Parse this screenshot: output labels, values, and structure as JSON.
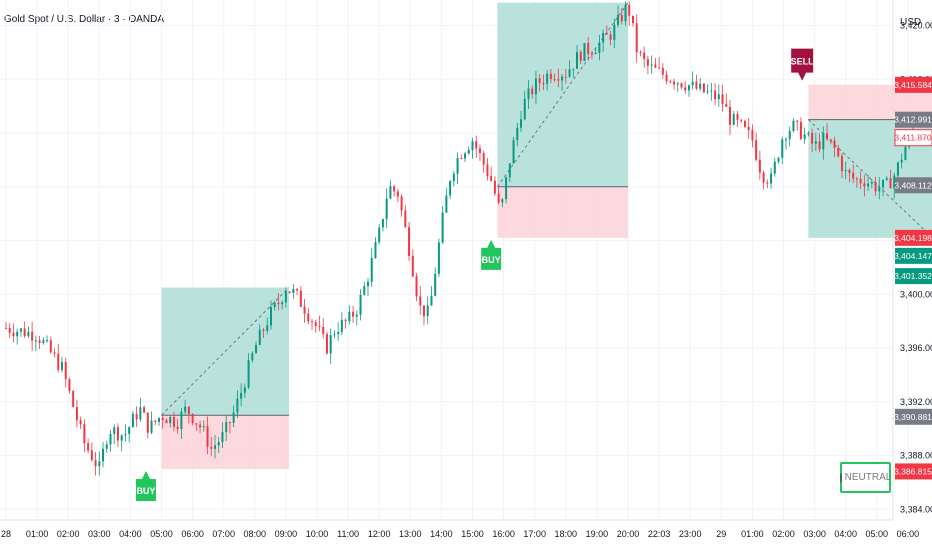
{
  "header": {
    "title": "Gold Spot / U.S. Dollar · 3 · OANDA",
    "currency": "USD"
  },
  "status_badge": {
    "label": "NEUTRAL",
    "border_color": "#22c55e"
  },
  "colors": {
    "up": "#089981",
    "down": "#f23645",
    "target_zone": "#b2dfd8",
    "stop_zone": "#fbd5d9",
    "buy_marker": "#22c55e",
    "sell_marker": "#a3123f",
    "gray_label": "#787b86",
    "teal_label": "#089981",
    "red_label": "#f23645"
  },
  "chart_data": {
    "type": "candlestick",
    "x_ticks": [
      "28",
      "01:00",
      "02:00",
      "03:00",
      "04:00",
      "05:00",
      "06:00",
      "07:00",
      "08:00",
      "09:00",
      "10:00",
      "11:00",
      "12:00",
      "13:00",
      "14:00",
      "15:00",
      "16:00",
      "17:00",
      "18:00",
      "19:00",
      "20:00",
      "22:03",
      "23:00",
      "29",
      "01:00",
      "02:00",
      "03:00",
      "04:00",
      "05:00",
      "06:00"
    ],
    "y_ticks": [
      "3,384.000",
      "3,388.000",
      "3,392.000",
      "3,396.000",
      "3,400.000",
      "3,404.000",
      "3,408.000",
      "3,412.000",
      "3,416.000",
      "3,420.000"
    ],
    "y_range": [
      3383.2,
      3421.9
    ],
    "grid": true,
    "price_path": [
      [
        0,
        3397.5
      ],
      [
        1,
        3397.0
      ],
      [
        1.8,
        3394.5
      ],
      [
        2.5,
        3389.0
      ],
      [
        3,
        3387.0
      ],
      [
        3.3,
        3390.0
      ],
      [
        3.8,
        3389.5
      ],
      [
        4.3,
        3391.5
      ],
      [
        4.6,
        3390.0
      ],
      [
        5,
        3391.0
      ],
      [
        5.5,
        3390.5
      ],
      [
        5.8,
        3391.5
      ],
      [
        6.3,
        3390.0
      ],
      [
        6.6,
        3388.5
      ],
      [
        7,
        3389.5
      ],
      [
        7.3,
        3391.0
      ],
      [
        7.6,
        3393.0
      ],
      [
        8,
        3396.0
      ],
      [
        8.5,
        3398.5
      ],
      [
        8.8,
        3399.5
      ],
      [
        9,
        3400.5
      ],
      [
        9.3,
        3400.0
      ],
      [
        9.6,
        3399.0
      ],
      [
        10,
        3397.5
      ],
      [
        10.3,
        3396.0
      ],
      [
        10.6,
        3397.5
      ],
      [
        11,
        3398.0
      ],
      [
        11.3,
        3399.0
      ],
      [
        11.6,
        3401.0
      ],
      [
        12,
        3404.5
      ],
      [
        12.3,
        3408.0
      ],
      [
        12.6,
        3407.5
      ],
      [
        13,
        3403.0
      ],
      [
        13.3,
        3399.0
      ],
      [
        13.6,
        3398.5
      ],
      [
        14,
        3405.0
      ],
      [
        14.3,
        3409.0
      ],
      [
        14.6,
        3410.5
      ],
      [
        15,
        3411.5
      ],
      [
        15.3,
        3410.0
      ],
      [
        15.6,
        3408.5
      ],
      [
        15.9,
        3406.0
      ],
      [
        16.2,
        3410.0
      ],
      [
        16.6,
        3414.0
      ],
      [
        17,
        3415.5
      ],
      [
        17.5,
        3416.5
      ],
      [
        18,
        3416.5
      ],
      [
        18.5,
        3418.0
      ],
      [
        19,
        3418.5
      ],
      [
        19.5,
        3419.5
      ],
      [
        20,
        3421.5
      ],
      [
        20.3,
        3418.0
      ],
      [
        20.6,
        3417.0
      ],
      [
        21,
        3416.5
      ],
      [
        21.5,
        3416.0
      ],
      [
        22,
        3415.5
      ],
      [
        22.5,
        3415.0
      ],
      [
        23,
        3414.5
      ],
      [
        23.3,
        3413.0
      ],
      [
        23.6,
        3412.5
      ],
      [
        24,
        3411.5
      ],
      [
        24.3,
        3409.0
      ],
      [
        24.6,
        3408.5
      ],
      [
        25,
        3412.0
      ],
      [
        25.3,
        3412.5
      ],
      [
        25.6,
        3412.0
      ],
      [
        26,
        3411.0
      ],
      [
        26.3,
        3411.5
      ],
      [
        26.6,
        3411.0
      ],
      [
        27,
        3409.0
      ],
      [
        27.3,
        3408.5
      ],
      [
        27.6,
        3408.5
      ],
      [
        28,
        3408.0
      ],
      [
        28.3,
        3408.0
      ],
      [
        28.6,
        3409.0
      ],
      [
        29,
        3411.5
      ],
      [
        29.3,
        3411.9
      ]
    ],
    "signals": [
      {
        "label": "BUY",
        "x": 4.5,
        "entry": 3391.0,
        "target": 3400.5,
        "stop": 3387.0,
        "zone_x": [
          5,
          9.1
        ]
      },
      {
        "label": "BUY",
        "x": 15.6,
        "entry": 3408.0,
        "target": 3421.7,
        "stop": 3404.2,
        "zone_x": [
          15.8,
          20
        ]
      },
      {
        "label": "SELL",
        "x": 25.6,
        "entry": 3413.0,
        "target": 3404.2,
        "stop": 3415.6,
        "zone_x": [
          25.8,
          29.8
        ]
      }
    ],
    "price_labels": [
      {
        "text": "3,415.584",
        "color": "red",
        "value": 3415.584
      },
      {
        "text": "3,412.991",
        "color": "gray",
        "value": 3412.991
      },
      {
        "text": "3,411.870",
        "color": "outline_red",
        "value": 3411.87
      },
      {
        "text": "3,408.112",
        "color": "gray",
        "value": 3408.112
      },
      {
        "text": "3,404.198",
        "color": "red",
        "value": 3404.198
      },
      {
        "text": "3,404.147",
        "color": "teal",
        "value": 3404.147
      },
      {
        "text": "3,401.352",
        "color": "teal",
        "value": 3401.352
      },
      {
        "text": "3,390.881",
        "color": "gray",
        "value": 3390.881
      },
      {
        "text": "3,386.815",
        "color": "red",
        "value": 3386.815
      }
    ]
  }
}
